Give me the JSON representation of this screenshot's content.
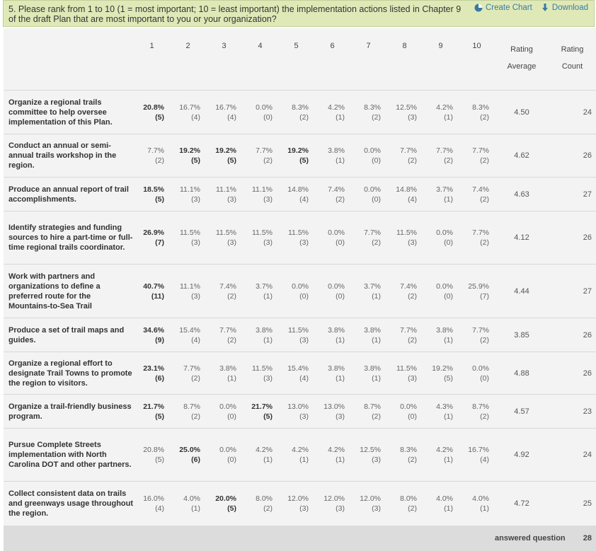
{
  "question": {
    "text": "5. Please rank from 1 to 10 (1 = most important; 10 = least important) the implementation actions listed in Chapter 9 of the draft Plan that are most important to you or your organization?",
    "create_chart": "Create Chart",
    "download": "Download"
  },
  "columns": [
    "1",
    "2",
    "3",
    "4",
    "5",
    "6",
    "7",
    "8",
    "9",
    "10"
  ],
  "rating_average_header": [
    "Rating",
    "Average"
  ],
  "rating_count_header": [
    "Rating",
    "Count"
  ],
  "rows": [
    {
      "label": "Organize a regional trails committee to help oversee implementation of this Plan.",
      "height": 62,
      "cells": [
        [
          "20.8%",
          "(5)",
          true
        ],
        [
          "16.7%",
          "(4)",
          false
        ],
        [
          "16.7%",
          "(4)",
          false
        ],
        [
          "0.0%",
          "(0)",
          false
        ],
        [
          "8.3%",
          "(2)",
          false
        ],
        [
          "4.2%",
          "(1)",
          false
        ],
        [
          "8.3%",
          "(2)",
          false
        ],
        [
          "12.5%",
          "(3)",
          false
        ],
        [
          "4.2%",
          "(1)",
          false
        ],
        [
          "8.3%",
          "(2)",
          false
        ]
      ],
      "avg": "4.50",
      "count": "24"
    },
    {
      "label": "Conduct an annual or semi-annual trails workshop in the region.",
      "height": 61,
      "cells": [
        [
          "7.7%",
          "(2)",
          false
        ],
        [
          "19.2%",
          "(5)",
          true
        ],
        [
          "19.2%",
          "(5)",
          true
        ],
        [
          "7.7%",
          "(2)",
          false
        ],
        [
          "19.2%",
          "(5)",
          true
        ],
        [
          "3.8%",
          "(1)",
          false
        ],
        [
          "0.0%",
          "(0)",
          false
        ],
        [
          "7.7%",
          "(2)",
          false
        ],
        [
          "7.7%",
          "(2)",
          false
        ],
        [
          "7.7%",
          "(2)",
          false
        ]
      ],
      "avg": "4.62",
      "count": "26"
    },
    {
      "label": "Produce an annual report of trail accomplishments.",
      "height": 48,
      "cells": [
        [
          "18.5%",
          "(5)",
          true
        ],
        [
          "11.1%",
          "(3)",
          false
        ],
        [
          "11.1%",
          "(3)",
          false
        ],
        [
          "11.1%",
          "(3)",
          false
        ],
        [
          "14.8%",
          "(4)",
          false
        ],
        [
          "7.4%",
          "(2)",
          false
        ],
        [
          "0.0%",
          "(0)",
          false
        ],
        [
          "14.8%",
          "(4)",
          false
        ],
        [
          "3.7%",
          "(1)",
          false
        ],
        [
          "7.4%",
          "(2)",
          false
        ]
      ],
      "avg": "4.63",
      "count": "27"
    },
    {
      "label": "Identify strategies and funding sources to hire a part-time or full-time regional trails coordinator.",
      "height": 75,
      "cells": [
        [
          "26.9%",
          "(7)",
          true
        ],
        [
          "11.5%",
          "(3)",
          false
        ],
        [
          "11.5%",
          "(3)",
          false
        ],
        [
          "11.5%",
          "(3)",
          false
        ],
        [
          "11.5%",
          "(3)",
          false
        ],
        [
          "0.0%",
          "(0)",
          false
        ],
        [
          "7.7%",
          "(2)",
          false
        ],
        [
          "11.5%",
          "(3)",
          false
        ],
        [
          "0.0%",
          "(0)",
          false
        ],
        [
          "7.7%",
          "(2)",
          false
        ]
      ],
      "avg": "4.12",
      "count": "26"
    },
    {
      "label": "Work with partners and organizations to define a preferred route for the Mountains-to-Sea Trail",
      "height": 76,
      "cells": [
        [
          "40.7%",
          "(11)",
          true
        ],
        [
          "11.1%",
          "(3)",
          false
        ],
        [
          "7.4%",
          "(2)",
          false
        ],
        [
          "3.7%",
          "(1)",
          false
        ],
        [
          "0.0%",
          "(0)",
          false
        ],
        [
          "0.0%",
          "(0)",
          false
        ],
        [
          "3.7%",
          "(1)",
          false
        ],
        [
          "7.4%",
          "(2)",
          false
        ],
        [
          "0.0%",
          "(0)",
          false
        ],
        [
          "25.9%",
          "(7)",
          false
        ]
      ],
      "avg": "4.44",
      "count": "27"
    },
    {
      "label": "Produce a set of trail maps and guides.",
      "height": 48,
      "cells": [
        [
          "34.6%",
          "(9)",
          true
        ],
        [
          "15.4%",
          "(4)",
          false
        ],
        [
          "7.7%",
          "(2)",
          false
        ],
        [
          "3.8%",
          "(1)",
          false
        ],
        [
          "11.5%",
          "(3)",
          false
        ],
        [
          "3.8%",
          "(1)",
          false
        ],
        [
          "3.8%",
          "(1)",
          false
        ],
        [
          "7.7%",
          "(2)",
          false
        ],
        [
          "3.8%",
          "(1)",
          false
        ],
        [
          "7.7%",
          "(2)",
          false
        ]
      ],
      "avg": "3.85",
      "count": "26"
    },
    {
      "label": "Organize a regional effort to designate Trail Towns to promote the region to visitors.",
      "height": 60,
      "cells": [
        [
          "23.1%",
          "(6)",
          true
        ],
        [
          "7.7%",
          "(2)",
          false
        ],
        [
          "3.8%",
          "(1)",
          false
        ],
        [
          "11.5%",
          "(3)",
          false
        ],
        [
          "15.4%",
          "(4)",
          false
        ],
        [
          "3.8%",
          "(1)",
          false
        ],
        [
          "3.8%",
          "(1)",
          false
        ],
        [
          "11.5%",
          "(3)",
          false
        ],
        [
          "19.2%",
          "(5)",
          false
        ],
        [
          "0.0%",
          "(0)",
          false
        ]
      ],
      "avg": "4.88",
      "count": "26"
    },
    {
      "label": "Organize a trail-friendly business program.",
      "height": 48,
      "cells": [
        [
          "21.7%",
          "(5)",
          true
        ],
        [
          "8.7%",
          "(2)",
          false
        ],
        [
          "0.0%",
          "(0)",
          false
        ],
        [
          "21.7%",
          "(5)",
          true
        ],
        [
          "13.0%",
          "(3)",
          false
        ],
        [
          "13.0%",
          "(3)",
          false
        ],
        [
          "8.7%",
          "(2)",
          false
        ],
        [
          "0.0%",
          "(0)",
          false
        ],
        [
          "4.3%",
          "(1)",
          false
        ],
        [
          "8.7%",
          "(2)",
          false
        ]
      ],
      "avg": "4.57",
      "count": "23"
    },
    {
      "label": "Pursue Complete Streets implementation with North Carolina DOT and other partners.",
      "height": 75,
      "cells": [
        [
          "20.8%",
          "(5)",
          false
        ],
        [
          "25.0%",
          "(6)",
          true
        ],
        [
          "0.0%",
          "(0)",
          false
        ],
        [
          "4.2%",
          "(1)",
          false
        ],
        [
          "4.2%",
          "(1)",
          false
        ],
        [
          "4.2%",
          "(1)",
          false
        ],
        [
          "12.5%",
          "(3)",
          false
        ],
        [
          "8.3%",
          "(2)",
          false
        ],
        [
          "4.2%",
          "(1)",
          false
        ],
        [
          "16.7%",
          "(4)",
          false
        ]
      ],
      "avg": "4.92",
      "count": "24"
    },
    {
      "label": "Collect consistent data on trails and greenways usage throughout the region.",
      "height": 62,
      "cells": [
        [
          "16.0%",
          "(4)",
          false
        ],
        [
          "4.0%",
          "(1)",
          false
        ],
        [
          "20.0%",
          "(5)",
          true
        ],
        [
          "8.0%",
          "(2)",
          false
        ],
        [
          "12.0%",
          "(3)",
          false
        ],
        [
          "12.0%",
          "(3)",
          false
        ],
        [
          "12.0%",
          "(3)",
          false
        ],
        [
          "8.0%",
          "(2)",
          false
        ],
        [
          "4.0%",
          "(1)",
          false
        ],
        [
          "4.0%",
          "(1)",
          false
        ]
      ],
      "avg": "4.72",
      "count": "25"
    }
  ],
  "footer": {
    "answered_label": "answered question",
    "answered_value": "28"
  },
  "colors": {
    "header_bg": "#dfe9b8",
    "table_bg": "#f3f3f3",
    "footer_bg": "#dcdcdc",
    "link": "#3a7a9f"
  }
}
